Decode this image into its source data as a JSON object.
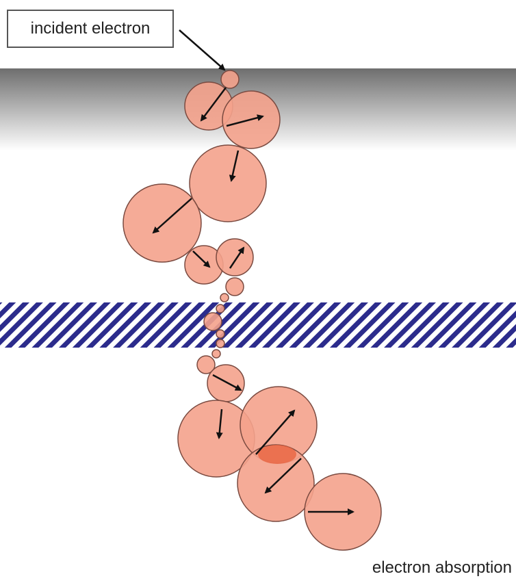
{
  "labels": {
    "incident": "incident electron",
    "absorption": "electron absorption"
  },
  "colors": {
    "particle_fill": "#f4a28c",
    "particle_stroke": "#7a4a40",
    "overlap_fill": "#e8603c",
    "arrow": "#111111",
    "hatch": "#2c2c8c",
    "surface_gradient_top": "#6e6e6e",
    "surface_gradient_bottom": "#ffffff"
  },
  "icons": [
    "arrow-icon"
  ]
}
